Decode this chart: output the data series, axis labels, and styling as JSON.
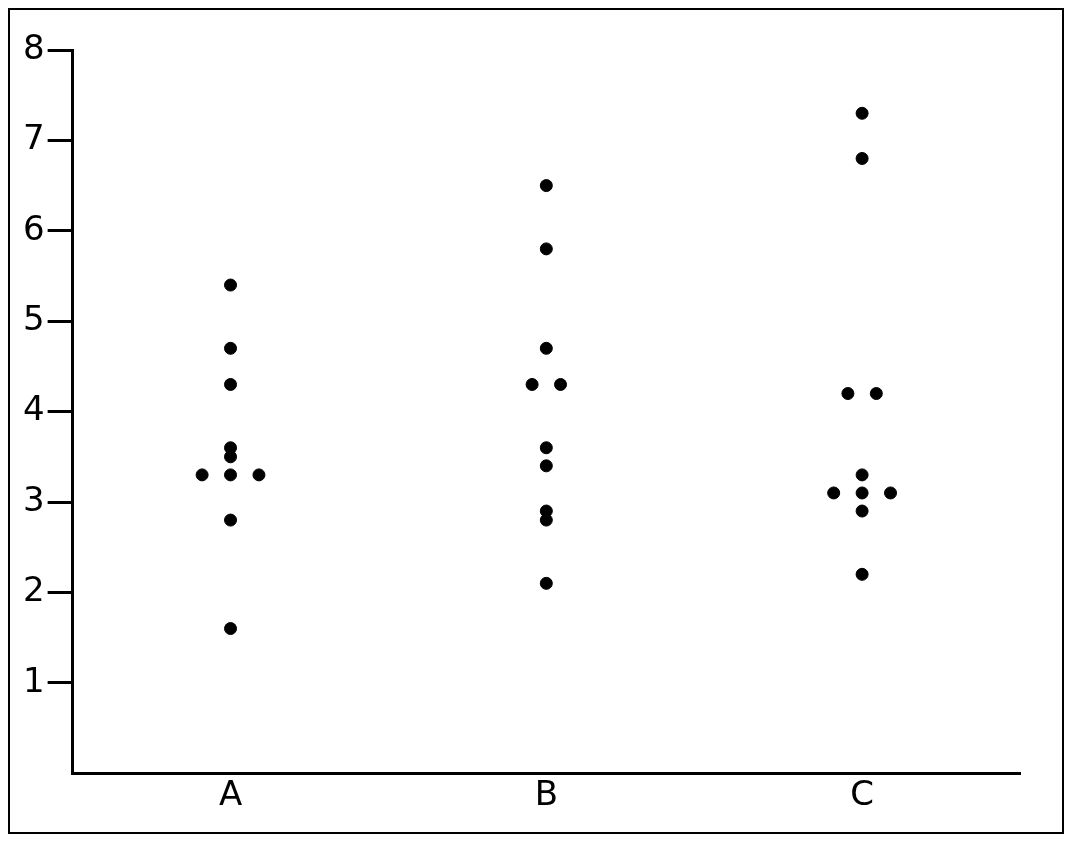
{
  "chart_data": {
    "type": "scatter",
    "categories": [
      "A",
      "B",
      "C"
    ],
    "series": [
      {
        "color": "#000000",
        "x": [
          "A",
          "A",
          "A",
          "A",
          "A",
          "A",
          "A",
          "A",
          "A",
          "A",
          "B",
          "B",
          "B",
          "B",
          "B",
          "B",
          "B",
          "B",
          "B",
          "B",
          "C",
          "C",
          "C",
          "C",
          "C",
          "C",
          "C",
          "C",
          "C",
          "C"
        ],
        "values": [
          5.4,
          4.7,
          4.3,
          3.6,
          3.5,
          3.3,
          3.3,
          3.3,
          2.8,
          1.6,
          6.5,
          5.8,
          4.7,
          4.3,
          4.3,
          3.6,
          3.4,
          2.9,
          2.8,
          2.1,
          7.3,
          6.8,
          4.2,
          4.2,
          3.3,
          3.1,
          3.1,
          3.1,
          2.9,
          2.2
        ]
      }
    ],
    "ylim": [
      0,
      8
    ],
    "yticks": [
      1,
      2,
      3,
      4,
      5,
      6,
      7,
      8
    ],
    "grid": false,
    "legend": false,
    "marker": "circle"
  }
}
